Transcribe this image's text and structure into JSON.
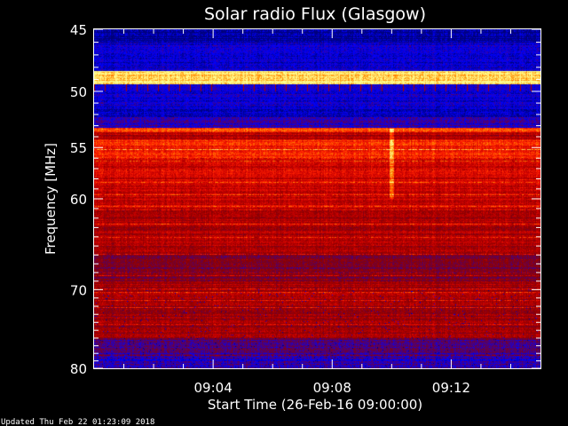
{
  "chart_data": {
    "type": "heatmap",
    "title": "Solar radio Flux (Glasgow)",
    "xlabel": "Start Time (26-Feb-16 09:00:00)",
    "ylabel": "Frequency [MHz]",
    "x_tick_labels": [
      "09:04",
      "09:08",
      "09:12"
    ],
    "x_ticks_minutes": [
      4,
      8,
      12
    ],
    "xlim_minutes": [
      0,
      15
    ],
    "y_ticks": [
      45,
      50,
      55,
      60,
      70,
      80
    ],
    "y_tick_labels": [
      "45",
      "50",
      "55",
      "60",
      "70",
      "80"
    ],
    "ylim": [
      45,
      80
    ],
    "y_scale": "log",
    "y_inverted": true,
    "colormap": [
      "#00007a",
      "#0000ff",
      "#5a0060",
      "#8a0000",
      "#c80000",
      "#ff2000",
      "#ff9000",
      "#ffff90"
    ],
    "features": [
      {
        "name": "bright narrowband interference",
        "freq_mhz": 49.0
      },
      {
        "name": "strong flux band",
        "freq_mhz_range": [
          53.5,
          60
        ]
      },
      {
        "name": "brief burst",
        "time_minutes": 10.0,
        "freq_mhz_range": [
          53,
          60
        ]
      }
    ]
  },
  "footer": "Updated Thu Feb 22 01:23:09 2018"
}
